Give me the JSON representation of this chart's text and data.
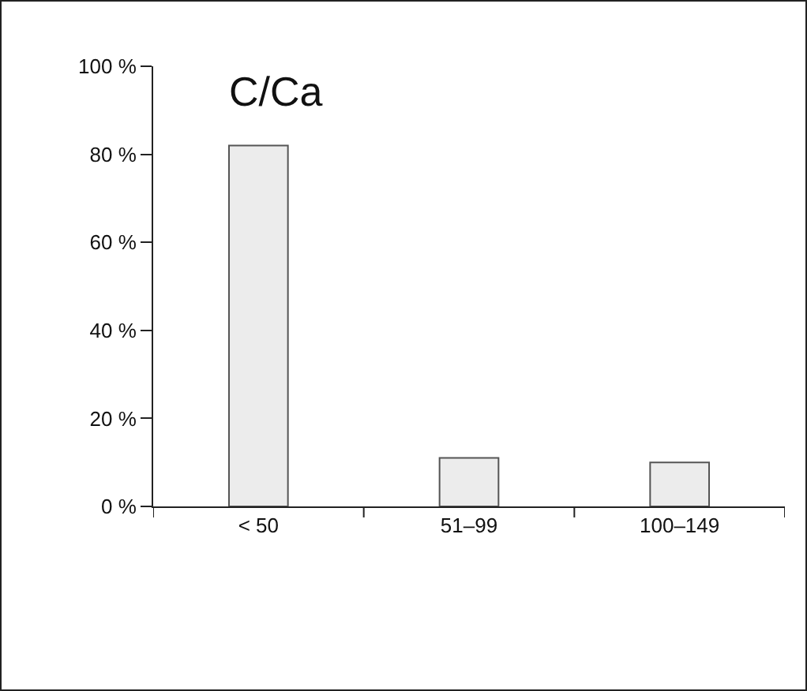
{
  "chart_data": {
    "type": "bar",
    "title": "C/Ca",
    "categories": [
      "< 50",
      "51–99",
      "100–149"
    ],
    "values": [
      82,
      11,
      10
    ],
    "color": "#ececec",
    "ylim": [
      0,
      100
    ],
    "yticks": [
      {
        "value": 0,
        "label": "0 %"
      },
      {
        "value": 20,
        "label": "20 %"
      },
      {
        "value": 40,
        "label": "40 %"
      },
      {
        "value": 60,
        "label": "60 %"
      },
      {
        "value": 80,
        "label": "80 %"
      },
      {
        "value": 100,
        "label": "100 %"
      }
    ],
    "grid": false,
    "legend": false
  }
}
